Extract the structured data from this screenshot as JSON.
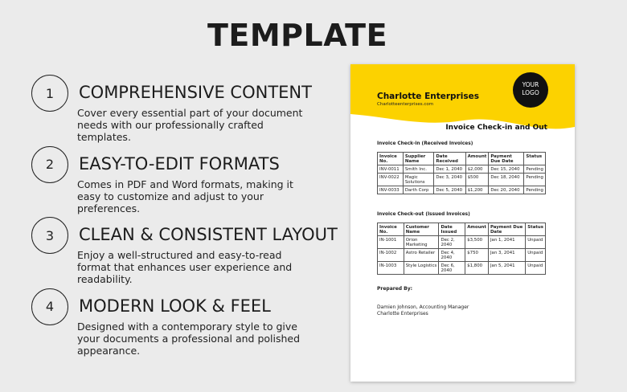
{
  "header": {
    "title": "TEMPLATE"
  },
  "features": [
    {
      "number": "1",
      "heading": "COMPREHENSIVE CONTENT",
      "text": "Cover every essential part of your document needs with our professionally crafted templates."
    },
    {
      "number": "2",
      "heading": "EASY-TO-EDIT FORMATS",
      "text": "Comes in PDF and Word formats, making it easy to customize and adjust to your preferences."
    },
    {
      "number": "3",
      "heading": "CLEAN & CONSISTENT LAYOUT",
      "text": "Enjoy a well-structured and easy-to-read format that enhances user experience and readability."
    },
    {
      "number": "4",
      "heading": "MODERN LOOK & FEEL",
      "text": "Designed with a contemporary style to give your documents a professional and polished appearance."
    }
  ],
  "document": {
    "company": "Charlotte Enterprises",
    "website": "Charlotteenterprises.com",
    "logo": [
      "YOUR",
      "LOGO"
    ],
    "title": "Invoice Check-in and Out",
    "sections": [
      {
        "label": "Invoice Check-in (Received Invoices)",
        "columns": [
          "Invoice No.",
          "Supplier Name",
          "Date Received",
          "Amount",
          "Payment Due Date",
          "Status"
        ],
        "rows": [
          [
            "INV-0011",
            "Smith Inc.",
            "Dec 1, 2040",
            "$2,000",
            "Dec 15, 2040",
            "Pending"
          ],
          [
            "INV-0022",
            "Magic Solutions",
            "Dec 3, 2040",
            "$500",
            "Dec 18, 2040",
            "Pending"
          ],
          [
            "INV-0033",
            "Darth Corp",
            "Dec 5, 2040",
            "$1,200",
            "Dec 20, 2040",
            "Pending"
          ]
        ]
      },
      {
        "label": "Invoice Check-out (Issued Invoices)",
        "columns": [
          "Invoice No.",
          "Customer Name",
          "Date Issued",
          "Amount",
          "Payment Due Date",
          "Status"
        ],
        "rows": [
          [
            "IN-1001",
            "Orion Marketing",
            "Dec 2, 2040",
            "$3,500",
            "Jan 1, 2041",
            "Unpaid"
          ],
          [
            "IN-1002",
            "Astro Retailer",
            "Dec 4, 2040",
            "$750",
            "Jan 3, 2041",
            "Unpaid"
          ],
          [
            "IN-1003",
            "Style Logistics",
            "Dec 6, 2040",
            "$1,800",
            "Jan 5, 2041",
            "Unpaid"
          ]
        ]
      }
    ],
    "prepared_label": "Prepared By:",
    "signer": [
      "Damien Johnson, Accounting Manager",
      "Charlotte Enterprises"
    ]
  }
}
